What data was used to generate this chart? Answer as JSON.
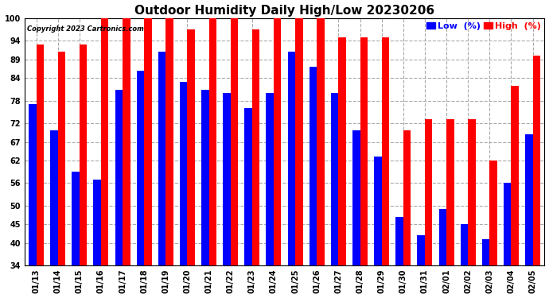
{
  "title": "Outdoor Humidity Daily High/Low 20230206",
  "copyright": "Copyright 2023 Cartronics.com",
  "legend_low": "Low  (%)",
  "legend_high": "High  (%)",
  "dates": [
    "01/13",
    "01/14",
    "01/15",
    "01/16",
    "01/17",
    "01/18",
    "01/19",
    "01/20",
    "01/21",
    "01/22",
    "01/23",
    "01/24",
    "01/25",
    "01/26",
    "01/27",
    "01/28",
    "01/29",
    "01/30",
    "01/31",
    "02/01",
    "02/02",
    "02/03",
    "02/04",
    "02/05"
  ],
  "high": [
    93,
    91,
    93,
    100,
    100,
    100,
    100,
    97,
    100,
    100,
    97,
    100,
    100,
    100,
    95,
    95,
    95,
    70,
    73,
    73,
    73,
    62,
    82,
    90
  ],
  "low": [
    77,
    70,
    59,
    57,
    81,
    86,
    91,
    83,
    81,
    80,
    76,
    80,
    91,
    87,
    80,
    70,
    63,
    47,
    42,
    49,
    45,
    41,
    56,
    69
  ],
  "ylim_min": 34,
  "ylim_max": 100,
  "yticks": [
    34,
    40,
    45,
    50,
    56,
    62,
    67,
    72,
    78,
    84,
    89,
    94,
    100
  ],
  "bar_width": 0.35,
  "high_color": "#ff0000",
  "low_color": "#0000ff",
  "bg_color": "#ffffff",
  "grid_color": "#aaaaaa",
  "title_fontsize": 11,
  "tick_fontsize": 7,
  "legend_fontsize": 8
}
